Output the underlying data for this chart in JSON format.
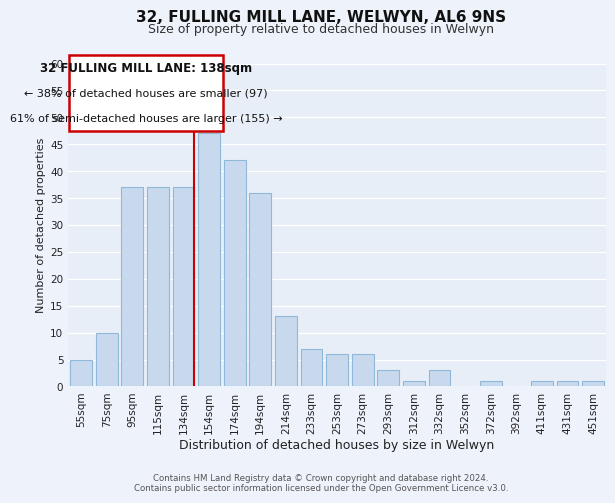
{
  "title": "32, FULLING MILL LANE, WELWYN, AL6 9NS",
  "subtitle": "Size of property relative to detached houses in Welwyn",
  "xlabel": "Distribution of detached houses by size in Welwyn",
  "ylabel": "Number of detached properties",
  "bar_labels": [
    "55sqm",
    "75sqm",
    "95sqm",
    "115sqm",
    "134sqm",
    "154sqm",
    "174sqm",
    "194sqm",
    "214sqm",
    "233sqm",
    "253sqm",
    "273sqm",
    "293sqm",
    "312sqm",
    "332sqm",
    "352sqm",
    "372sqm",
    "392sqm",
    "411sqm",
    "431sqm",
    "451sqm"
  ],
  "bar_values": [
    5,
    10,
    37,
    37,
    37,
    47,
    42,
    36,
    13,
    7,
    6,
    6,
    3,
    1,
    3,
    0,
    1,
    0,
    1,
    1,
    1
  ],
  "bar_color": "#c8d9ee",
  "bar_edge_color": "#8fb8d8",
  "red_line_after_index": 4,
  "highlight_color": "#cc0000",
  "ylim": [
    0,
    60
  ],
  "yticks": [
    0,
    5,
    10,
    15,
    20,
    25,
    30,
    35,
    40,
    45,
    50,
    55,
    60
  ],
  "annotation_line1": "32 FULLING MILL LANE: 138sqm",
  "annotation_line2": "← 38% of detached houses are smaller (97)",
  "annotation_line3": "61% of semi-detached houses are larger (155) →",
  "footer_line1": "Contains HM Land Registry data © Crown copyright and database right 2024.",
  "footer_line2": "Contains public sector information licensed under the Open Government Licence v3.0.",
  "background_color": "#eef2fa",
  "plot_background_color": "#e8eef8",
  "grid_color": "#ffffff",
  "title_fontsize": 11,
  "subtitle_fontsize": 9,
  "axis_label_fontsize": 9,
  "tick_fontsize": 7.5,
  "ylabel_fontsize": 8
}
